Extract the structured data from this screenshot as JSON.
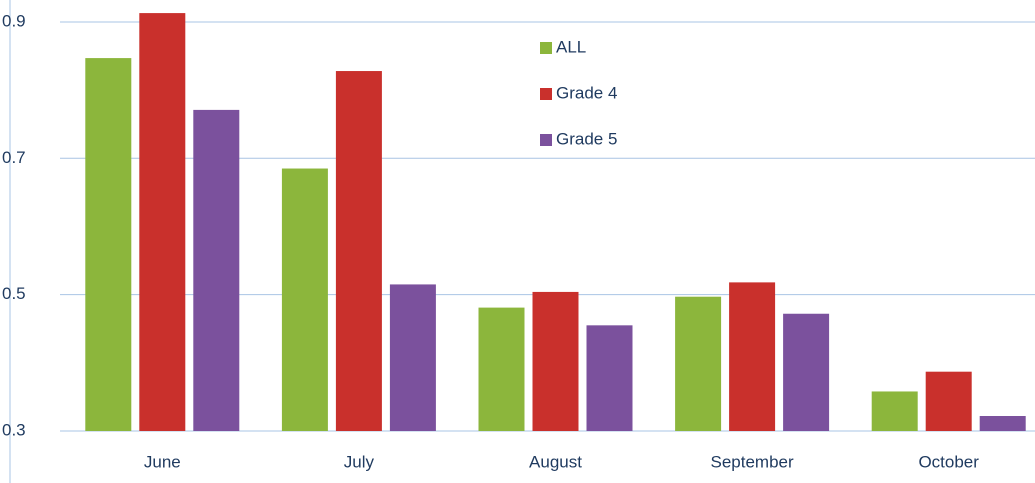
{
  "chart_data": {
    "type": "bar",
    "categories": [
      "June",
      "July",
      "August",
      "September",
      "October"
    ],
    "series": [
      {
        "name": "ALL",
        "color": "#8cb63c",
        "values": [
          0.847,
          0.685,
          0.481,
          0.497,
          0.358
        ]
      },
      {
        "name": "Grade 4",
        "color": "#c9302c",
        "values": [
          0.913,
          0.828,
          0.504,
          0.518,
          0.387
        ]
      },
      {
        "name": "Grade 5",
        "color": "#7b519d",
        "values": [
          0.771,
          0.515,
          0.455,
          0.472,
          0.322
        ]
      }
    ],
    "ylim": [
      0.3,
      0.93
    ],
    "yticks": [
      0.3,
      0.5,
      0.7,
      0.9
    ],
    "grid": true,
    "legend": "top"
  }
}
